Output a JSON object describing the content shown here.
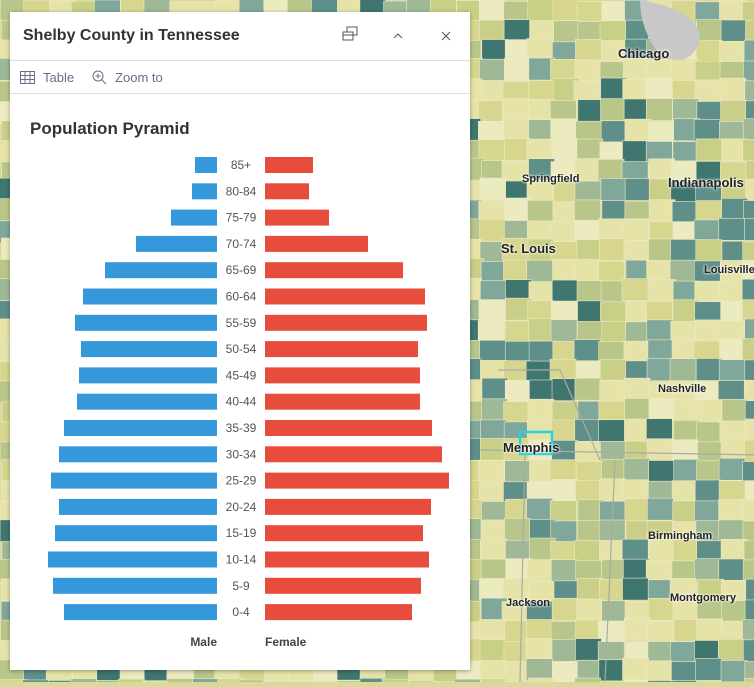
{
  "map": {
    "cities": [
      {
        "name": "Chicago",
        "big": true
      },
      {
        "name": "Springfield"
      },
      {
        "name": "Indianapolis",
        "big": true
      },
      {
        "name": "St. Louis",
        "big": true
      },
      {
        "name": "Louisville"
      },
      {
        "name": "Nashville"
      },
      {
        "name": "Memphis",
        "big": true
      },
      {
        "name": "Birmingham"
      },
      {
        "name": "Jackson"
      },
      {
        "name": "Montgomery"
      }
    ],
    "highlight_color": "#22d3e0"
  },
  "panel": {
    "title": "Shelby County in Tennessee",
    "actions": [
      {
        "label": "Table",
        "icon": "table-icon"
      },
      {
        "label": "Zoom to",
        "icon": "zoom-in-icon"
      }
    ]
  },
  "chart_data": {
    "type": "bar",
    "title": "Population Pyramid",
    "categories": [
      "85+",
      "80-84",
      "75-79",
      "70-74",
      "65-69",
      "60-64",
      "55-59",
      "50-54",
      "45-49",
      "40-44",
      "35-39",
      "30-34",
      "25-29",
      "20-24",
      "15-19",
      "10-14",
      "5-9",
      "0-4"
    ],
    "series": [
      {
        "name": "Male",
        "color": "#3498db",
        "values": [
          22,
          25,
          46,
          81,
          112,
          134,
          142,
          136,
          138,
          140,
          153,
          158,
          166,
          158,
          162,
          169,
          164,
          153
        ]
      },
      {
        "name": "Female",
        "color": "#e74c3c",
        "values": [
          48,
          44,
          64,
          103,
          138,
          160,
          162,
          153,
          155,
          155,
          167,
          177,
          184,
          166,
          158,
          164,
          156,
          147
        ]
      }
    ]
  }
}
